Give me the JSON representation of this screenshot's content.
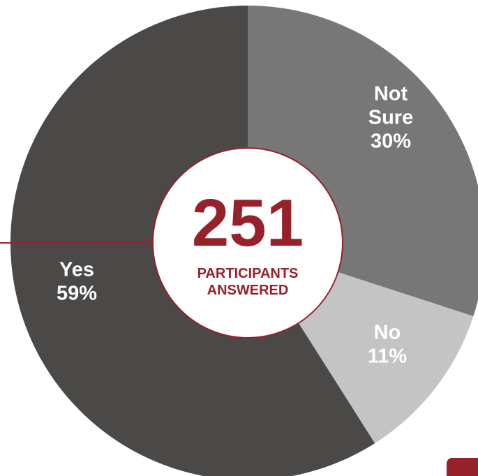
{
  "chart_data": {
    "type": "pie",
    "style": "donut",
    "total": "251",
    "center_caption": [
      "PARTICIPANTS",
      "ANSWERED"
    ],
    "slices": [
      {
        "label": "Not Sure",
        "label_lines": [
          "Not",
          "Sure"
        ],
        "percent_text": "30%",
        "value": 30,
        "color": "#777777"
      },
      {
        "label": "No",
        "label_lines": [
          "No"
        ],
        "percent_text": "11%",
        "value": 11,
        "color": "#c4c4c4"
      },
      {
        "label": "Yes",
        "label_lines": [
          "Yes"
        ],
        "percent_text": "59%",
        "value": 59,
        "color": "#4a4948"
      }
    ]
  },
  "colors": {
    "accent": "#96212b",
    "label_text": "#ffffff",
    "center_fill": "#ffffff",
    "background": "#ffffff"
  }
}
